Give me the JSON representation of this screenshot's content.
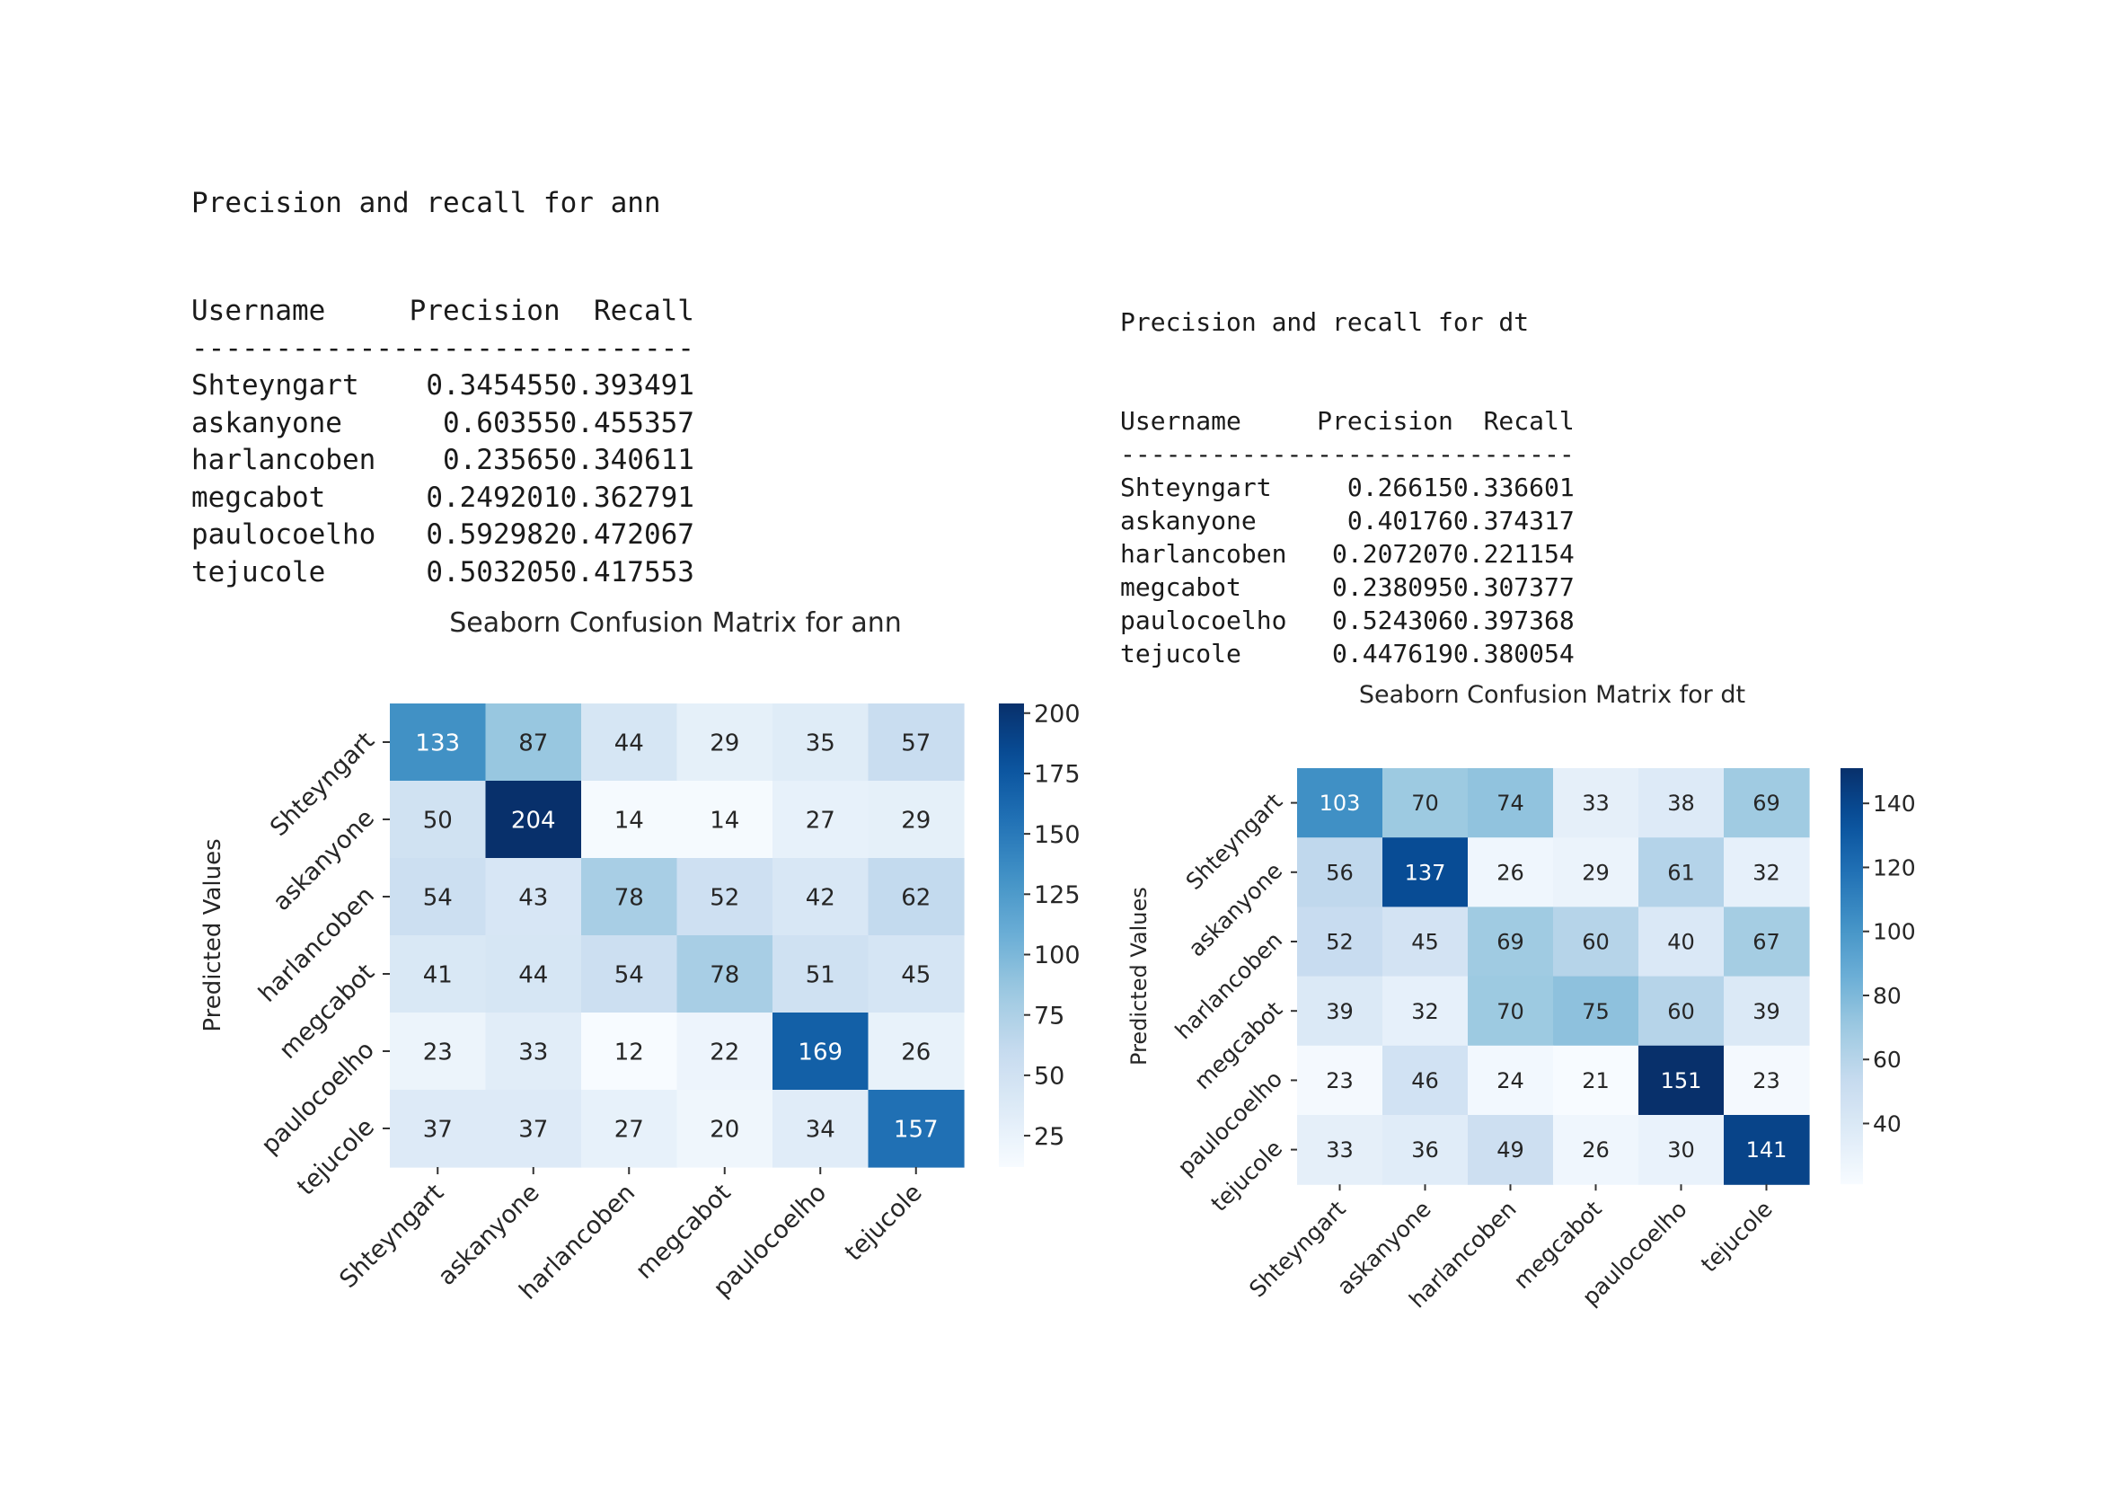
{
  "reports": [
    {
      "id": "ann",
      "heading": "Precision and recall for ann",
      "columns": [
        "Username",
        "Precision",
        "Recall"
      ],
      "dividers": [
        "-----------",
        "-----------",
        "--------"
      ],
      "rows": [
        [
          "Shteyngart",
          "0.345455",
          "0.393491"
        ],
        [
          "askanyone",
          "0.60355",
          "0.455357"
        ],
        [
          "harlancoben",
          "0.23565",
          "0.340611"
        ],
        [
          "megcabot",
          "0.249201",
          "0.362791"
        ],
        [
          "paulocoelho",
          "0.592982",
          "0.472067"
        ],
        [
          "tejucole",
          "0.503205",
          "0.417553"
        ]
      ]
    },
    {
      "id": "dt",
      "heading": "Precision and recall for dt",
      "columns": [
        "Username",
        "Precision",
        "Recall"
      ],
      "dividers": [
        "-----------",
        "-----------",
        "--------"
      ],
      "rows": [
        [
          "Shteyngart",
          "0.26615",
          "0.336601"
        ],
        [
          "askanyone",
          "0.40176",
          "0.374317"
        ],
        [
          "harlancoben",
          "0.207207",
          "0.221154"
        ],
        [
          "megcabot",
          "0.238095",
          "0.307377"
        ],
        [
          "paulocoelho",
          "0.524306",
          "0.397368"
        ],
        [
          "tejucole",
          "0.447619",
          "0.380054"
        ]
      ]
    }
  ],
  "chart_data": [
    {
      "type": "heatmap",
      "title": "Seaborn Confusion Matrix for ann",
      "ylabel": "Predicted Values",
      "xlabel": "",
      "x_categories": [
        "Shteyngart",
        "askanyone",
        "harlancoben",
        "megcabot",
        "paulocoelho",
        "tejucole"
      ],
      "y_categories": [
        "Shteyngart",
        "askanyone",
        "harlancoben",
        "megcabot",
        "paulocoelho",
        "tejucole"
      ],
      "values": [
        [
          133,
          87,
          44,
          29,
          35,
          57
        ],
        [
          50,
          204,
          14,
          14,
          27,
          29
        ],
        [
          54,
          43,
          78,
          52,
          42,
          62
        ],
        [
          41,
          44,
          54,
          78,
          51,
          45
        ],
        [
          23,
          33,
          12,
          22,
          169,
          26
        ],
        [
          37,
          37,
          27,
          20,
          34,
          157
        ]
      ],
      "colormap": "Blues",
      "colorbar_range": [
        12,
        204
      ],
      "colorbar_ticks": [
        25,
        50,
        75,
        100,
        125,
        150,
        175,
        200
      ]
    },
    {
      "type": "heatmap",
      "title": "Seaborn Confusion Matrix for dt",
      "ylabel": "Predicted Values",
      "xlabel": "",
      "x_categories": [
        "Shteyngart",
        "askanyone",
        "harlancoben",
        "megcabot",
        "paulocoelho",
        "tejucole"
      ],
      "y_categories": [
        "Shteyngart",
        "askanyone",
        "harlancoben",
        "megcabot",
        "paulocoelho",
        "tejucole"
      ],
      "values": [
        [
          103,
          70,
          74,
          33,
          38,
          69
        ],
        [
          56,
          137,
          26,
          29,
          61,
          32
        ],
        [
          52,
          45,
          69,
          60,
          40,
          67
        ],
        [
          39,
          32,
          70,
          75,
          60,
          39
        ],
        [
          23,
          46,
          24,
          21,
          151,
          23
        ],
        [
          33,
          36,
          49,
          26,
          30,
          141
        ]
      ],
      "colormap": "Blues",
      "colorbar_range": [
        21,
        151
      ],
      "colorbar_ticks": [
        40,
        60,
        80,
        100,
        120,
        140
      ]
    }
  ]
}
